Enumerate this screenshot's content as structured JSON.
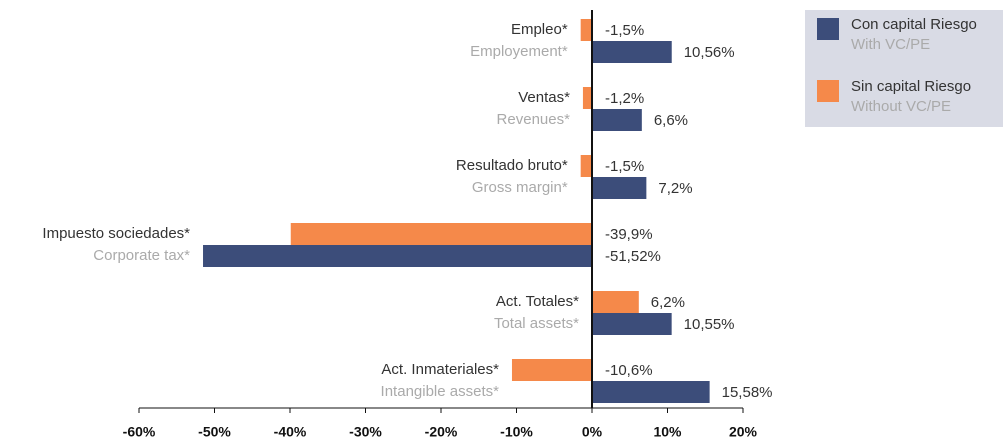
{
  "chart_data": {
    "type": "barh",
    "categories": [
      "Empleo*",
      "Ventas*",
      "Resultado bruto*",
      "Impuesto sociedades*",
      "Act. Totales*",
      "Act. Inmateriales*"
    ],
    "categories_en": [
      "Employement*",
      "Revenues*",
      "Gross margin*",
      "Corporate tax*",
      "Total assets*",
      "Intangible assets*"
    ],
    "series": [
      {
        "name": "Sin capital Riesgo",
        "name_en": "Without VC/PE",
        "color": "#f5894a",
        "values": [
          -1.5,
          -1.2,
          -1.5,
          -39.9,
          6.2,
          -10.6
        ],
        "value_labels": [
          "-1,5%",
          "-1,2%",
          "-1,5%",
          "-39,9%",
          "6,2%",
          "-10,6%"
        ]
      },
      {
        "name": "Con capital Riesgo",
        "name_en": "With VC/PE",
        "color": "#3c4d7a",
        "values": [
          10.56,
          6.6,
          7.2,
          -51.52,
          10.55,
          15.58
        ],
        "value_labels": [
          "10,56%",
          "6,6%",
          "7,2%",
          "-51,52%",
          "10,55%",
          "15,58%"
        ]
      }
    ],
    "legend_order": [
      1,
      0
    ],
    "xlim": [
      -60,
      20
    ],
    "xticks": [
      {
        "value": -60,
        "label": "-60%"
      },
      {
        "value": -50,
        "label": "-50%"
      },
      {
        "value": -40,
        "label": "-40%"
      },
      {
        "value": -30,
        "label": "-30%"
      },
      {
        "value": -20,
        "label": "-20%"
      },
      {
        "value": -10,
        "label": "-10%"
      },
      {
        "value": 0,
        "label": "0%"
      },
      {
        "value": 10,
        "label": "10%"
      },
      {
        "value": 20,
        "label": "20%"
      }
    ],
    "legend": "top-right"
  }
}
